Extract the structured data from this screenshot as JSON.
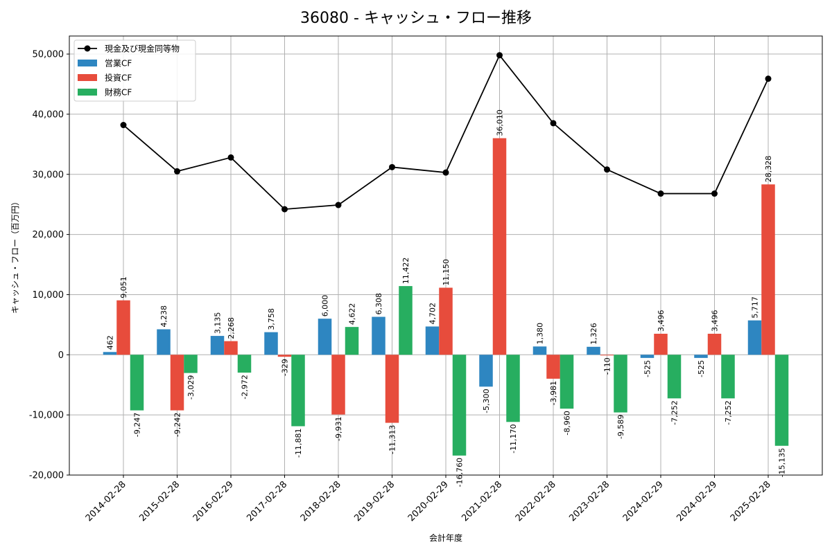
{
  "chart_data": {
    "type": "bar",
    "title": "36080 - キャッシュ・フロー推移",
    "xlabel": "会計年度",
    "ylabel": "キャッシュ・フロー（百万円）",
    "ylim": [
      -20000,
      53000
    ],
    "yticks": [
      -20000,
      -10000,
      0,
      10000,
      20000,
      30000,
      40000,
      50000
    ],
    "ytick_labels": [
      "-20,000",
      "-10,000",
      "0",
      "10,000",
      "20,000",
      "30,000",
      "40,000",
      "50,000"
    ],
    "grid": true,
    "legend_position": "top-left",
    "categories": [
      "2014-02-28",
      "2015-02-28",
      "2016-02-29",
      "2017-02-28",
      "2018-02-28",
      "2019-02-28",
      "2020-02-29",
      "2021-02-28",
      "2022-02-28",
      "2023-02-28",
      "2024-02-29",
      "2024-02-29",
      "2025-02-28"
    ],
    "series": [
      {
        "name": "営業CF",
        "type": "bar",
        "color": "#2e86c1",
        "values": [
          462,
          4238,
          3135,
          3758,
          6000,
          6308,
          4702,
          -5300,
          1380,
          1326,
          -525,
          -525,
          5717
        ],
        "labels": [
          "462",
          "4,238",
          "3,135",
          "3,758",
          "6,000",
          "6,308",
          "4,702",
          "-5,300",
          "1,380",
          "1,326",
          "-525",
          "-525",
          "5,717"
        ]
      },
      {
        "name": "投資CF",
        "type": "bar",
        "color": "#e74c3c",
        "values": [
          9051,
          -9242,
          2268,
          -329,
          -9931,
          -11313,
          11150,
          36010,
          -3981,
          -110,
          3496,
          3496,
          28328
        ],
        "labels": [
          "9,051",
          "-9,242",
          "2,268",
          "-329",
          "-9,931",
          "-11,313",
          "11,150",
          "36,010",
          "-3,981",
          "-110",
          "3,496",
          "3,496",
          "28,328"
        ]
      },
      {
        "name": "財務CF",
        "type": "bar",
        "color": "#27ae60",
        "values": [
          -9247,
          -3029,
          -2972,
          -11881,
          4622,
          11422,
          -16760,
          -11170,
          -8960,
          -9589,
          -7252,
          -7252,
          -15135
        ],
        "labels": [
          "-9,247",
          "-3,029",
          "-2,972",
          "-11,881",
          "4,622",
          "11,422",
          "-16,760",
          "-11,170",
          "-8,960",
          "-9,589",
          "-7,252",
          "-7,252",
          "-15,135"
        ]
      },
      {
        "name": "現金及び現金同等物",
        "type": "line",
        "color": "#000000",
        "values": [
          38200,
          30500,
          32800,
          24200,
          24900,
          31200,
          30300,
          49800,
          38500,
          30800,
          26800,
          26800,
          45900
        ]
      }
    ]
  }
}
